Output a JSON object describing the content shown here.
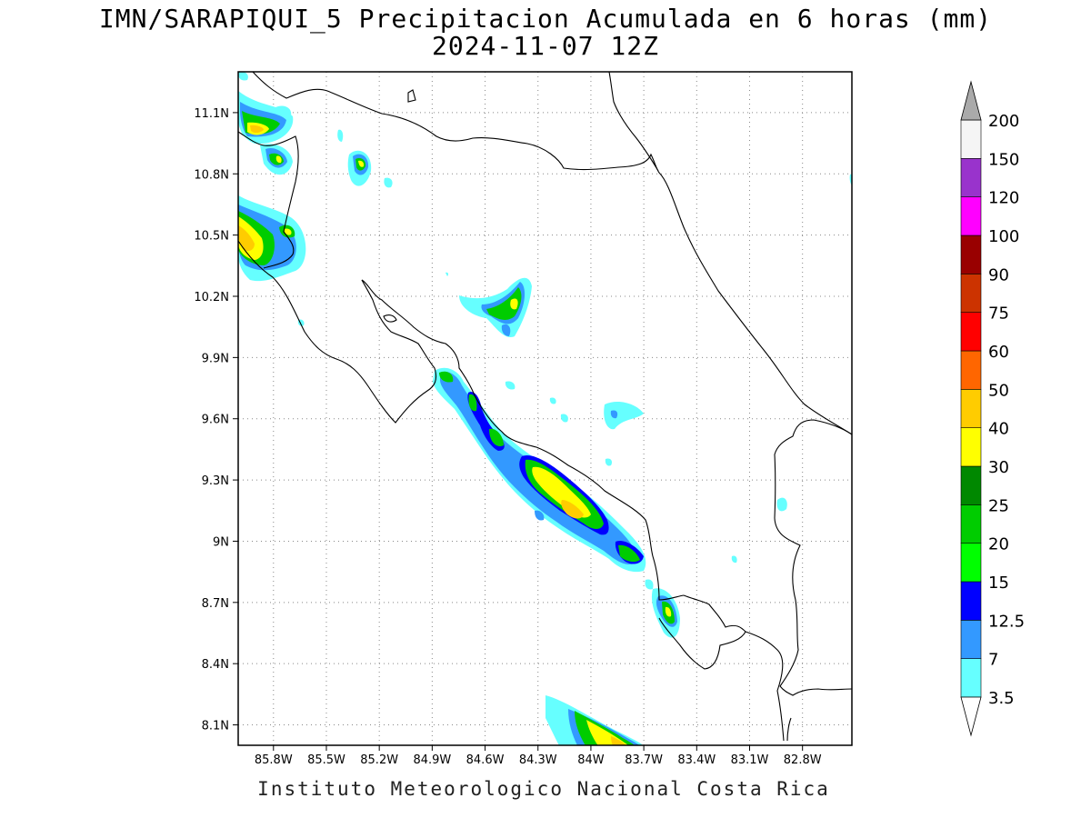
{
  "title": {
    "line1": "IMN/SARAPIQUI_5 Precipitacion Acumulada en 6 horas (mm)",
    "line2": "2024-11-07 12Z"
  },
  "footer": "Instituto Meteorologico Nacional Costa Rica",
  "map": {
    "lon_range": [
      -86.0,
      -82.52
    ],
    "lat_range": [
      8.0,
      11.3
    ],
    "x_ticks": [
      {
        "lon": -85.8,
        "label": "85.8W"
      },
      {
        "lon": -85.5,
        "label": "85.5W"
      },
      {
        "lon": -85.2,
        "label": "85.2W"
      },
      {
        "lon": -84.9,
        "label": "84.9W"
      },
      {
        "lon": -84.6,
        "label": "84.6W"
      },
      {
        "lon": -84.3,
        "label": "84.3W"
      },
      {
        "lon": -84.0,
        "label": "84W"
      },
      {
        "lon": -83.7,
        "label": "83.7W"
      },
      {
        "lon": -83.4,
        "label": "83.4W"
      },
      {
        "lon": -83.1,
        "label": "83.1W"
      },
      {
        "lon": -82.8,
        "label": "82.8W"
      }
    ],
    "y_ticks": [
      {
        "lat": 11.1,
        "label": "11.1N"
      },
      {
        "lat": 10.8,
        "label": "10.8N"
      },
      {
        "lat": 10.5,
        "label": "10.5N"
      },
      {
        "lat": 10.2,
        "label": "10.2N"
      },
      {
        "lat": 9.9,
        "label": "9.9N"
      },
      {
        "lat": 9.6,
        "label": "9.6N"
      },
      {
        "lat": 9.3,
        "label": "9.3N"
      },
      {
        "lat": 9.0,
        "label": "9N"
      },
      {
        "lat": 8.7,
        "label": "8.7N"
      },
      {
        "lat": 8.4,
        "label": "8.4N"
      },
      {
        "lat": 8.1,
        "label": "8.1N"
      }
    ],
    "grid": "dotted"
  },
  "colorbar": {
    "levels": [
      {
        "label": "3.5",
        "color": "#66ffff"
      },
      {
        "label": "7",
        "color": "#3399ff"
      },
      {
        "label": "12.5",
        "color": "#0000ff"
      },
      {
        "label": "15",
        "color": "#00ff00"
      },
      {
        "label": "20",
        "color": "#00cc00"
      },
      {
        "label": "25",
        "color": "#008800"
      },
      {
        "label": "30",
        "color": "#ffff00"
      },
      {
        "label": "40",
        "color": "#ffcc00"
      },
      {
        "label": "50",
        "color": "#ff6600"
      },
      {
        "label": "60",
        "color": "#ff0000"
      },
      {
        "label": "75",
        "color": "#cc3300"
      },
      {
        "label": "90",
        "color": "#990000"
      },
      {
        "label": "100",
        "color": "#ff00ff"
      },
      {
        "label": "120",
        "color": "#9933cc"
      },
      {
        "label": "150",
        "color": "#f5f5f5"
      },
      {
        "label": "200",
        "color": "#aaaaaa"
      }
    ]
  }
}
